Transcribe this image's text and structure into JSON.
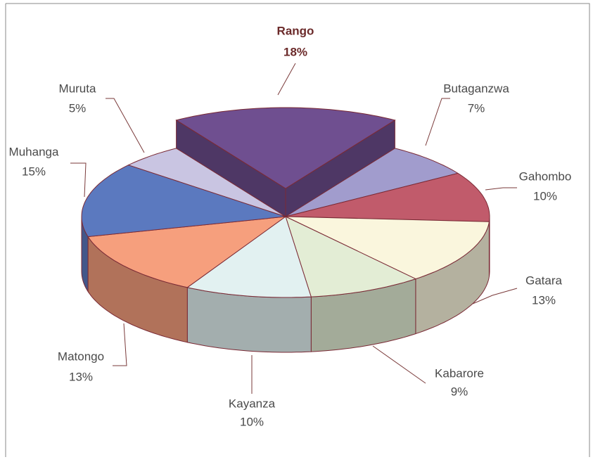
{
  "chart_data": {
    "type": "pie",
    "categories": [
      "Rango",
      "Butaganzwa",
      "Gahombo",
      "Gatara",
      "Kabarore",
      "Kayanza",
      "Matongo",
      "Muhanga",
      "Muruta"
    ],
    "values": [
      18,
      7,
      10,
      13,
      9,
      10,
      13,
      15,
      5
    ],
    "value_labels": [
      "18%",
      "7%",
      "10%",
      "13%",
      "9%",
      "10%",
      "13%",
      "15%",
      "5%"
    ],
    "colors": [
      "#6f4f90",
      "#a19ccd",
      "#c15b6b",
      "#faf6dd",
      "#e3edd5",
      "#e2f1f1",
      "#f69f7d",
      "#5b79bf",
      "#c9c5e2"
    ],
    "exploded": "Rango"
  }
}
